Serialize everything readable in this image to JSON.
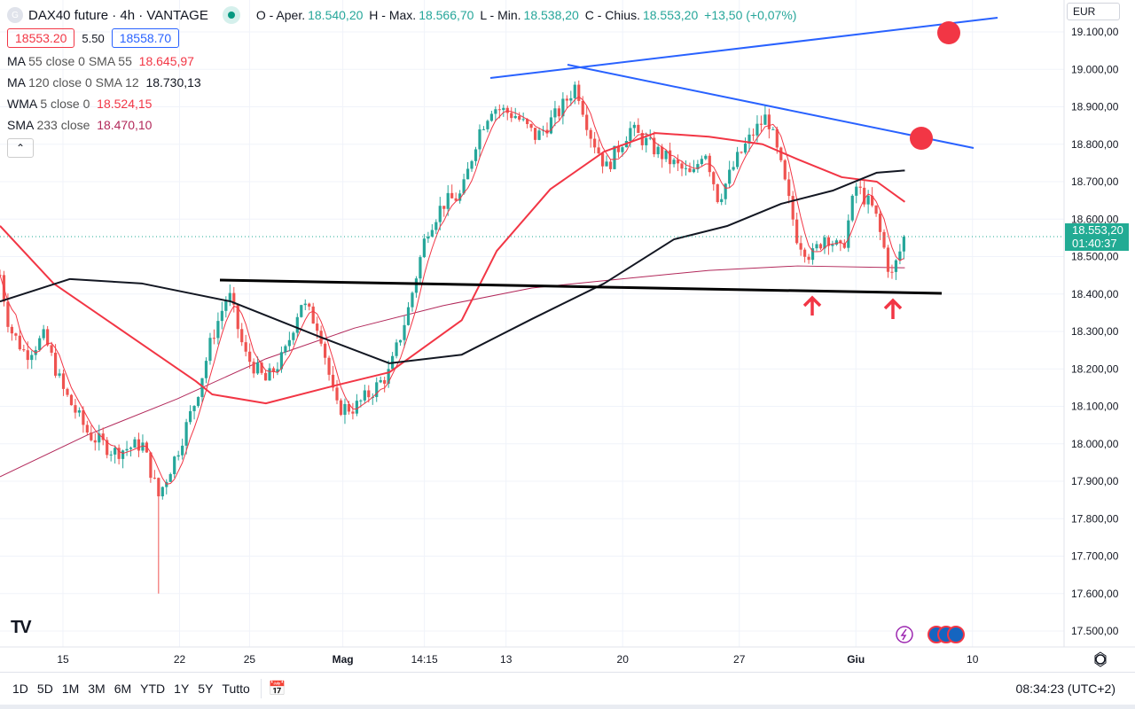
{
  "header": {
    "symbol_title": "DAX40 future · 4h · VANTAGE",
    "logo_letter": "G",
    "ohlc": [
      {
        "label": "O - Aper.",
        "value": "18.540,20"
      },
      {
        "label": "H - Max.",
        "value": "18.566,70"
      },
      {
        "label": "L - Min.",
        "value": "18.538,20"
      },
      {
        "label": "C - Chius.",
        "value": "18.553,20"
      }
    ],
    "change": "+13,50 (+0,07%)",
    "sell_price": "18553.20",
    "spread": "5.50",
    "buy_price": "18558.70"
  },
  "indicators": [
    {
      "name": "MA",
      "params": "55 close 0 SMA 55",
      "value": "18.645,97",
      "color": "#f23645"
    },
    {
      "name": "MA",
      "params": "120 close 0 SMA 12",
      "value": "18.730,13",
      "color": "#131722"
    },
    {
      "name": "WMA",
      "params": "5 close 0",
      "value": "18.524,15",
      "color": "#f23645"
    },
    {
      "name": "SMA",
      "params": "233 close",
      "value": "18.470,10",
      "color": "#b2285a"
    }
  ],
  "currency": "EUR",
  "current_price": {
    "price": "18.553,20",
    "countdown": "01:40:37"
  },
  "toolbar": {
    "ranges": [
      "1D",
      "5D",
      "1M",
      "3M",
      "6M",
      "YTD",
      "1Y",
      "5Y",
      "Tutto"
    ],
    "clock": "08:34:23 (UTC+2)"
  },
  "colors": {
    "up": "#26a69a",
    "down": "#ef5350",
    "accent": "#2962ff"
  },
  "chart_data": {
    "type": "candlestick",
    "title": "DAX40 future · 4h · VANTAGE",
    "x_unit": "trading-day index (0 = 15 Apr)",
    "xlim": [
      -2.7,
      42.9
    ],
    "ylim": [
      17470,
      19180
    ],
    "y_ticks": [
      "17.500,00",
      "17.600,00",
      "17.700,00",
      "17.800,00",
      "17.900,00",
      "18.000,00",
      "18.100,00",
      "18.200,00",
      "18.300,00",
      "18.400,00",
      "18.500,00",
      "18.600,00",
      "18.700,00",
      "18.800,00",
      "18.900,00",
      "19.000,00",
      "19.100,00"
    ],
    "x_ticks": [
      {
        "d": 0,
        "label": "15"
      },
      {
        "d": 5,
        "label": "22"
      },
      {
        "d": 8,
        "label": "25"
      },
      {
        "d": 12,
        "label": "Mag"
      },
      {
        "d": 15.5,
        "label": "14:15"
      },
      {
        "d": 19,
        "label": "13"
      },
      {
        "d": 24,
        "label": "20"
      },
      {
        "d": 29,
        "label": "27"
      },
      {
        "d": 34,
        "label": "Giu"
      },
      {
        "d": 39,
        "label": "10"
      }
    ],
    "close_path": [
      [
        -2.7,
        18451
      ],
      [
        -2.3,
        18310
      ],
      [
        -1.6,
        18239
      ],
      [
        -0.8,
        18286
      ],
      [
        0,
        18144
      ],
      [
        1.1,
        18026
      ],
      [
        2.2,
        17978
      ],
      [
        3.4,
        18000
      ],
      [
        4.1,
        17860
      ],
      [
        4.9,
        17978
      ],
      [
        5.7,
        18120
      ],
      [
        6.4,
        18286
      ],
      [
        7.1,
        18404
      ],
      [
        7.8,
        18238
      ],
      [
        8.7,
        18167
      ],
      [
        9.5,
        18238
      ],
      [
        10.2,
        18380
      ],
      [
        11.0,
        18310
      ],
      [
        11.7,
        18096
      ],
      [
        12.5,
        18096
      ],
      [
        13.3,
        18143
      ],
      [
        14.0,
        18191
      ],
      [
        14.8,
        18357
      ],
      [
        15.6,
        18570
      ],
      [
        16.3,
        18641
      ],
      [
        17.1,
        18665
      ],
      [
        17.8,
        18830
      ],
      [
        18.4,
        18901
      ],
      [
        19.4,
        18877
      ],
      [
        20.3,
        18818
      ],
      [
        21.3,
        18889
      ],
      [
        22.0,
        18960
      ],
      [
        22.6,
        18830
      ],
      [
        23.3,
        18736
      ],
      [
        24.3,
        18842
      ],
      [
        25.2,
        18795
      ],
      [
        26.2,
        18747
      ],
      [
        27.0,
        18712
      ],
      [
        27.5,
        18795
      ],
      [
        28.1,
        18653
      ],
      [
        28.9,
        18759
      ],
      [
        29.6,
        18830
      ],
      [
        30.2,
        18877
      ],
      [
        30.8,
        18736
      ],
      [
        31.5,
        18546
      ],
      [
        32.1,
        18499
      ],
      [
        32.7,
        18560
      ],
      [
        33.4,
        18510
      ],
      [
        34.0,
        18688
      ],
      [
        34.8,
        18620
      ],
      [
        35.3,
        18499
      ],
      [
        35.5,
        18440
      ],
      [
        36.1,
        18553
      ]
    ],
    "notable_low": {
      "d": 4.1,
      "price": 17600
    },
    "series": [
      {
        "name": "MA 55",
        "color": "#f23645",
        "points": [
          [
            -2.7,
            18582
          ],
          [
            -0.4,
            18428
          ],
          [
            5.7,
            18167
          ],
          [
            6.4,
            18132
          ],
          [
            8.7,
            18108
          ],
          [
            11.7,
            18156
          ],
          [
            14.0,
            18191
          ],
          [
            17.1,
            18330
          ],
          [
            18.6,
            18515
          ],
          [
            20.9,
            18680
          ],
          [
            23.2,
            18780
          ],
          [
            25.4,
            18830
          ],
          [
            27.7,
            18820
          ],
          [
            30.0,
            18800
          ],
          [
            31.5,
            18760
          ],
          [
            33.4,
            18712
          ],
          [
            34.9,
            18700
          ],
          [
            36.1,
            18646
          ]
        ]
      },
      {
        "name": "MA 120",
        "color": "#131722",
        "points": [
          [
            -2.7,
            18380
          ],
          [
            0.3,
            18440
          ],
          [
            3.4,
            18428
          ],
          [
            7.2,
            18380
          ],
          [
            11.0,
            18286
          ],
          [
            14.0,
            18215
          ],
          [
            17.1,
            18238
          ],
          [
            20.1,
            18333
          ],
          [
            23.2,
            18428
          ],
          [
            26.2,
            18546
          ],
          [
            28.5,
            18582
          ],
          [
            30.8,
            18641
          ],
          [
            33.0,
            18676
          ],
          [
            34.9,
            18724
          ],
          [
            36.1,
            18730
          ]
        ]
      },
      {
        "name": "SMA 233",
        "color": "#b2285a",
        "points": [
          [
            -2.7,
            17912
          ],
          [
            1.1,
            18025
          ],
          [
            4.9,
            18120
          ],
          [
            8.7,
            18227
          ],
          [
            12.5,
            18309
          ],
          [
            16.3,
            18369
          ],
          [
            20.1,
            18416
          ],
          [
            23.9,
            18440
          ],
          [
            27.7,
            18463
          ],
          [
            31.5,
            18475
          ],
          [
            36.1,
            18470
          ]
        ]
      }
    ]
  }
}
